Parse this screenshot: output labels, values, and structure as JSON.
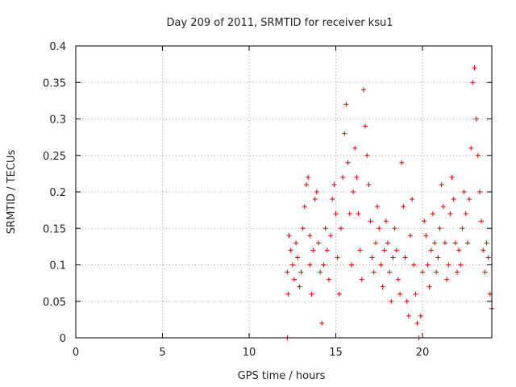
{
  "chart_data": {
    "type": "scatter",
    "title": "Day 209 of 2011, SRMTID for receiver ksu1",
    "xlabel": "GPS time / hours",
    "ylabel": "SRMTID / TECUs",
    "xlim": [
      0,
      24
    ],
    "ylim": [
      0,
      0.4
    ],
    "xticks": [
      0,
      5,
      10,
      15,
      20
    ],
    "yticks": [
      0,
      0.05,
      0.1,
      0.15,
      0.2,
      0.25,
      0.3,
      0.35,
      0.4
    ],
    "xtick_labels": [
      "0",
      "5",
      "10",
      "15",
      "20"
    ],
    "ytick_labels": [
      "0",
      "0.05",
      "0.1",
      "0.15",
      "0.2",
      "0.25",
      "0.3",
      "0.35",
      "0.4"
    ],
    "grid": true,
    "marker": "+",
    "series": [
      {
        "name": "ksu1",
        "color": "#e00000",
        "x": [
          12.2,
          12.2,
          12.25,
          12.3,
          12.4,
          12.5,
          12.6,
          12.7,
          12.8,
          12.9,
          13.0,
          13.1,
          13.2,
          13.3,
          13.4,
          13.5,
          13.5,
          13.6,
          13.7,
          13.8,
          13.9,
          14.0,
          14.1,
          14.2,
          14.3,
          14.4,
          14.5,
          14.6,
          14.7,
          14.8,
          14.9,
          15.0,
          15.1,
          15.2,
          15.3,
          15.4,
          15.5,
          15.6,
          15.7,
          15.8,
          15.9,
          16.0,
          16.1,
          16.2,
          16.3,
          16.4,
          16.5,
          16.6,
          16.7,
          16.8,
          16.9,
          17.0,
          17.1,
          17.2,
          17.3,
          17.4,
          17.5,
          17.6,
          17.7,
          17.8,
          17.9,
          18.0,
          18.1,
          18.2,
          18.3,
          18.4,
          18.5,
          18.6,
          18.7,
          18.8,
          18.9,
          19.0,
          19.1,
          19.2,
          19.3,
          19.4,
          19.5,
          19.6,
          19.7,
          19.8,
          19.9,
          20.0,
          20.1,
          20.2,
          20.3,
          20.4,
          20.5,
          20.6,
          20.7,
          20.8,
          20.9,
          21.0,
          21.1,
          21.2,
          21.3,
          21.4,
          21.5,
          21.6,
          21.7,
          21.8,
          21.9,
          22.0,
          22.1,
          22.2,
          22.3,
          22.4,
          22.5,
          22.6,
          22.7,
          22.8,
          22.9,
          23.0,
          23.1,
          23.2,
          23.3,
          23.4,
          23.5,
          23.6,
          23.7,
          23.8,
          23.9,
          24.0
        ],
        "y": [
          0.0,
          0.09,
          0.06,
          0.14,
          0.12,
          0.1,
          0.08,
          0.13,
          0.11,
          0.07,
          0.09,
          0.15,
          0.18,
          0.21,
          0.22,
          0.14,
          0.1,
          0.06,
          0.12,
          0.19,
          0.2,
          0.13,
          0.09,
          0.02,
          0.1,
          0.15,
          0.12,
          0.08,
          0.14,
          0.19,
          0.21,
          0.17,
          0.11,
          0.06,
          0.15,
          0.22,
          0.28,
          0.32,
          0.24,
          0.17,
          0.1,
          0.2,
          0.26,
          0.22,
          0.17,
          0.12,
          0.08,
          0.34,
          0.29,
          0.25,
          0.21,
          0.16,
          0.11,
          0.09,
          0.13,
          0.18,
          0.15,
          0.1,
          0.07,
          0.12,
          0.16,
          0.13,
          0.09,
          0.05,
          0.11,
          0.15,
          0.12,
          0.08,
          0.06,
          0.24,
          0.18,
          0.11,
          0.05,
          0.03,
          0.14,
          0.19,
          0.1,
          0.06,
          0.02,
          0.0,
          0.03,
          0.09,
          0.16,
          0.14,
          0.1,
          0.07,
          0.12,
          0.17,
          0.13,
          0.09,
          0.11,
          0.15,
          0.21,
          0.18,
          0.13,
          0.08,
          0.1,
          0.17,
          0.22,
          0.19,
          0.13,
          0.09,
          0.12,
          0.1,
          0.15,
          0.2,
          0.17,
          0.13,
          0.19,
          0.26,
          0.35,
          0.37,
          0.3,
          0.25,
          0.2,
          0.16,
          0.12,
          0.09,
          0.13,
          0.11,
          0.06,
          0.04
        ]
      }
    ]
  }
}
